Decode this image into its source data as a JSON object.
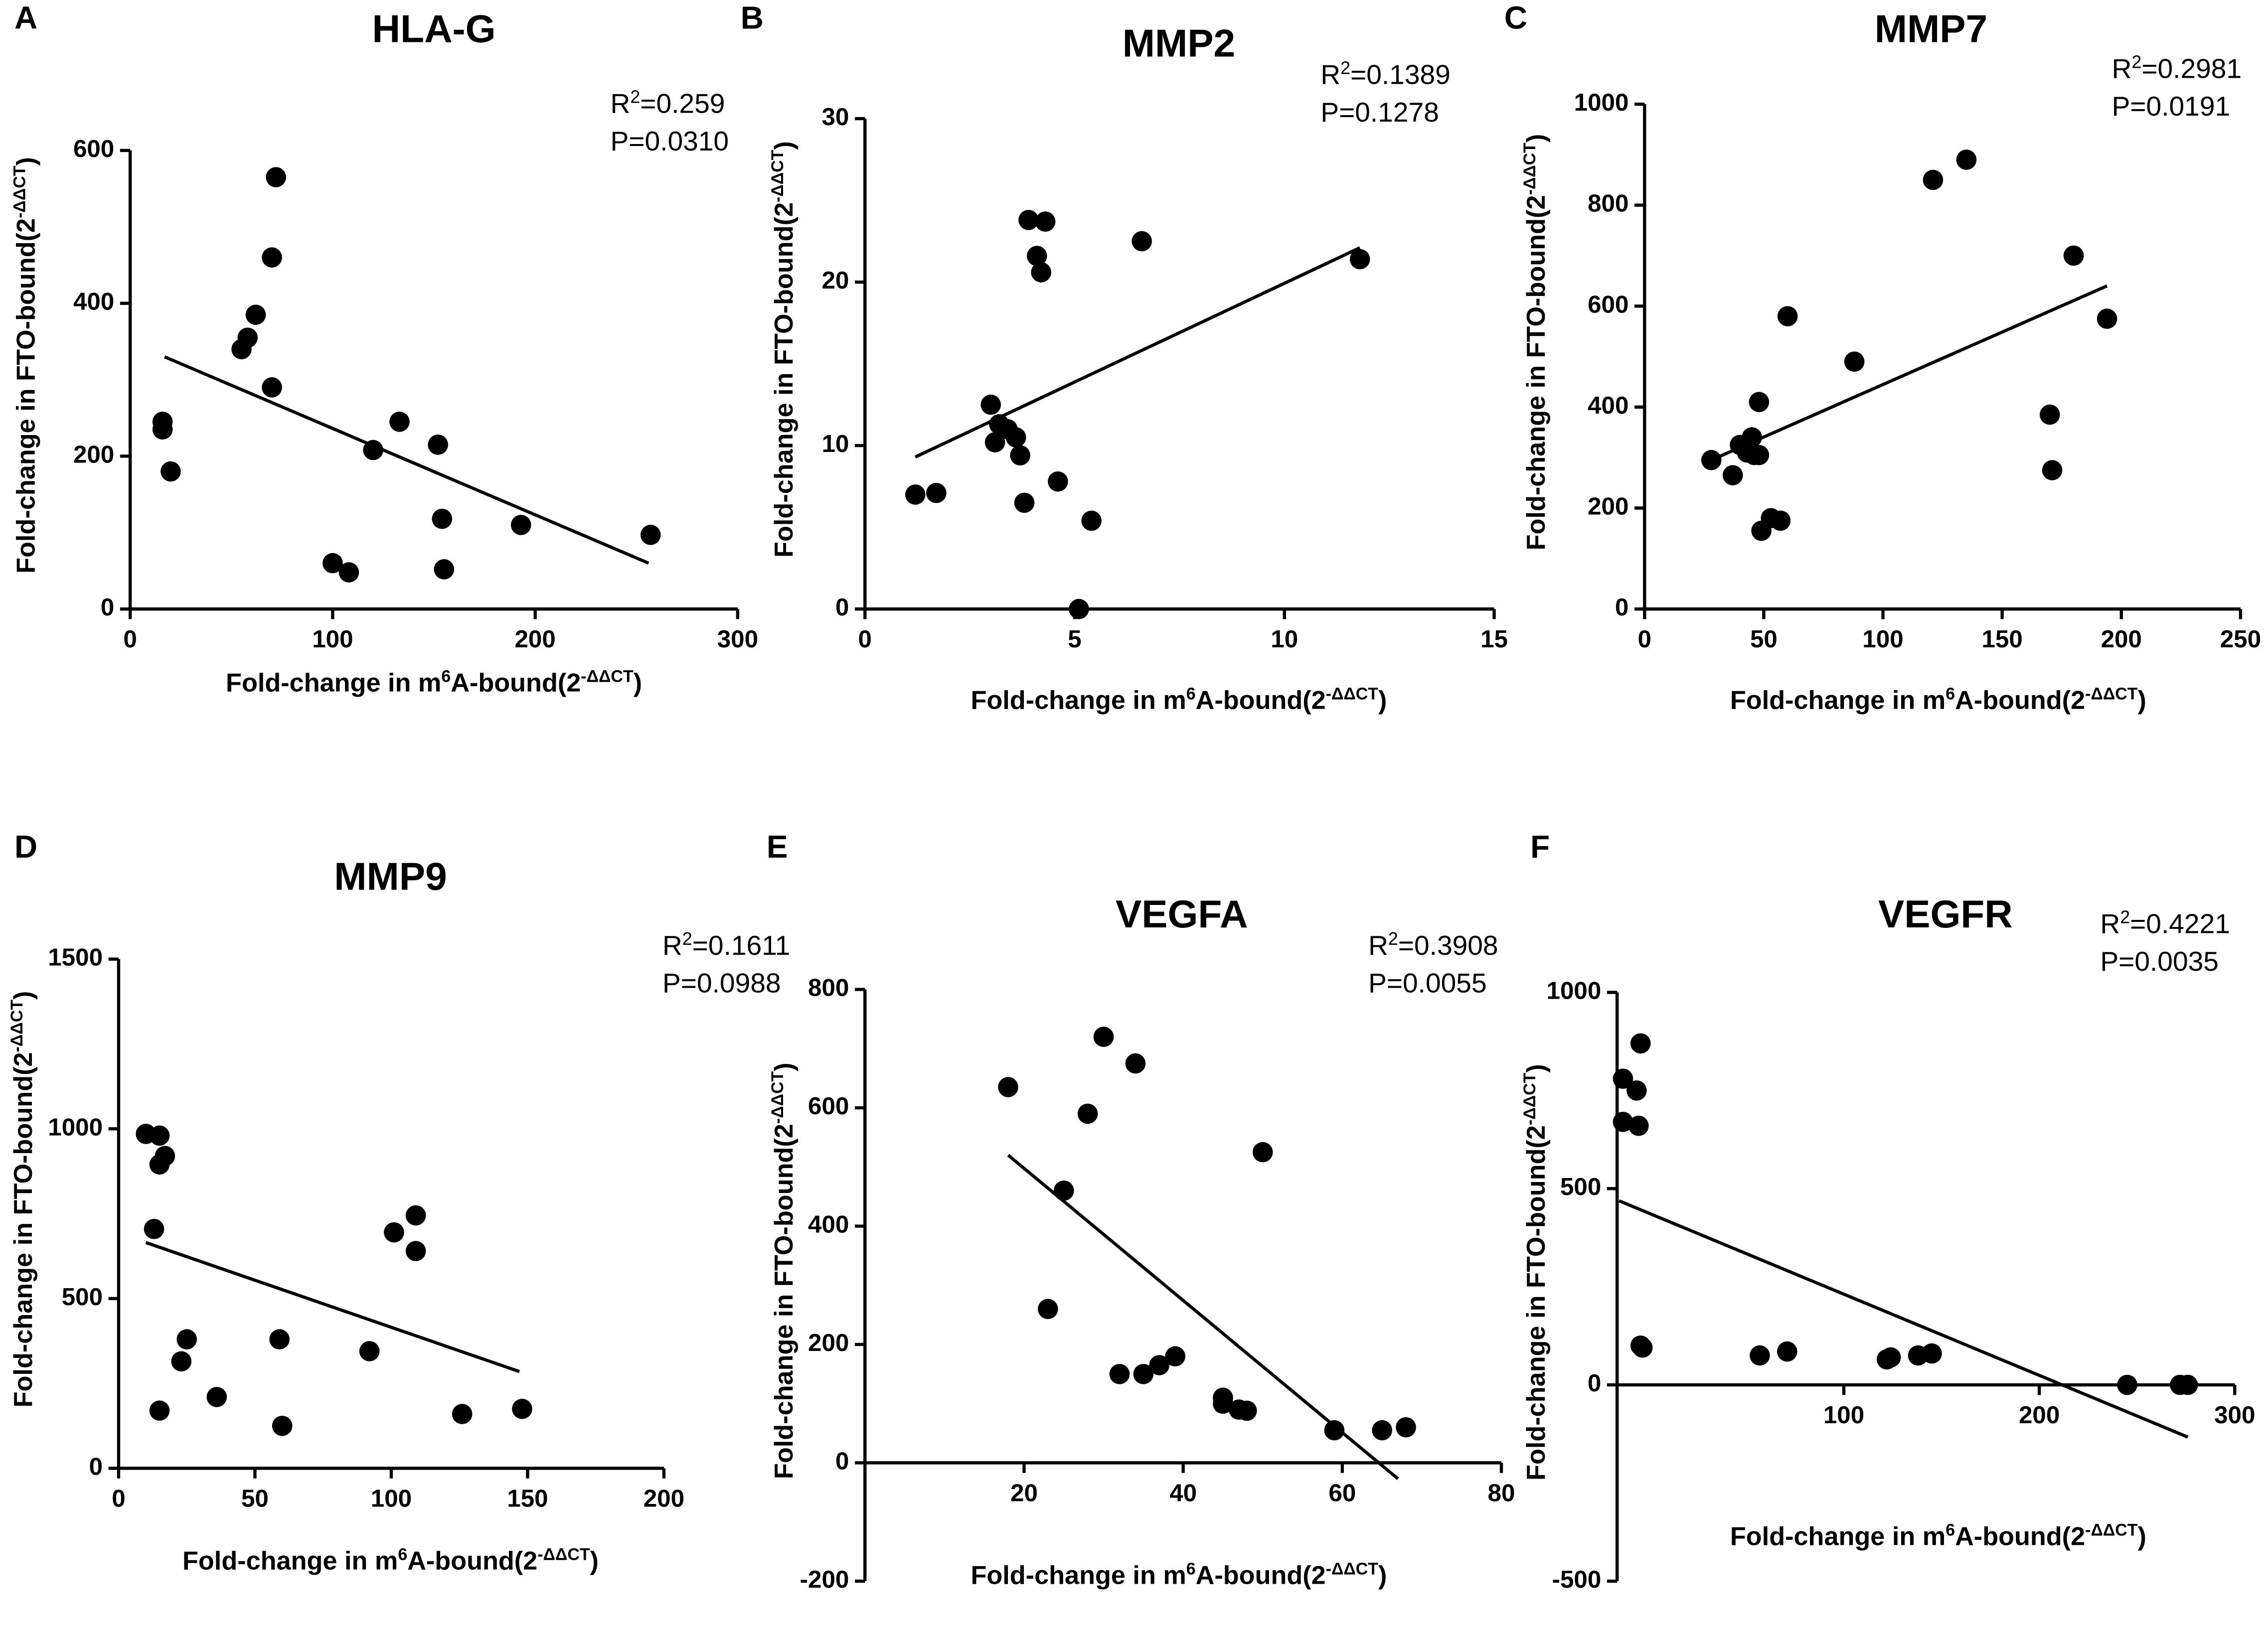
{
  "chart_data": [
    {
      "type": "scatter",
      "panel_label": "A",
      "title": "HLA-G",
      "xlabel": [
        "Fold-change in m",
        "6",
        "A-bound(2",
        "-ΔΔCT",
        ")"
      ],
      "ylabel": [
        "Fold-change in FTO-bound(2",
        "-ΔΔCT",
        ")"
      ],
      "r2": [
        "R",
        "2",
        "=0.259"
      ],
      "p": "P=0.0310",
      "color": "#000000",
      "x": [
        16,
        16,
        20,
        55,
        58,
        62,
        70,
        72,
        70,
        100,
        108,
        120,
        133,
        152,
        154,
        155,
        193,
        257
      ],
      "y": [
        245,
        235,
        180,
        340,
        355,
        385,
        460,
        565,
        290,
        60,
        48,
        208,
        245,
        215,
        118,
        52,
        110,
        97
      ],
      "fit": {
        "x": [
          17,
          256
        ],
        "y": [
          330,
          60
        ]
      },
      "xlim": [
        0,
        300
      ],
      "ylim": [
        0,
        600
      ],
      "xticks": [
        0,
        100,
        200,
        300
      ],
      "yticks": [
        0,
        200,
        400,
        600
      ]
    },
    {
      "type": "scatter",
      "panel_label": "B",
      "title": "MMP2",
      "xlabel": [
        "Fold-change in m",
        "6",
        "A-bound(2",
        "-ΔΔCT",
        ")"
      ],
      "ylabel": [
        "Fold-change in FTO-bound(2",
        "-ΔΔCT",
        ")"
      ],
      "r2": [
        "R",
        "2",
        "=0.1389"
      ],
      "p": "P=0.1278",
      "color": "#000000",
      "x": [
        1.2,
        1.7,
        3.0,
        3.1,
        3.2,
        3.4,
        3.6,
        3.7,
        3.8,
        3.9,
        4.1,
        4.2,
        4.3,
        4.6,
        5.1,
        5.4,
        6.6,
        11.8
      ],
      "y": [
        7,
        7.1,
        12.5,
        10.2,
        11.3,
        11,
        10.5,
        9.4,
        6.5,
        23.8,
        21.6,
        20.6,
        23.7,
        7.8,
        0,
        5.4,
        22.5,
        21.4
      ],
      "fit": {
        "x": [
          1.2,
          11.8
        ],
        "y": [
          9.3,
          22.1
        ]
      },
      "xlim": [
        0,
        15
      ],
      "ylim": [
        0,
        30
      ],
      "xticks": [
        0,
        5,
        10,
        15
      ],
      "yticks": [
        0,
        10,
        20,
        30
      ]
    },
    {
      "type": "scatter",
      "panel_label": "C",
      "title": "MMP7",
      "xlabel": [
        "Fold-change in m",
        "6",
        "A-bound(2",
        "-ΔΔCT",
        ")"
      ],
      "ylabel": [
        "Fold-change in FTO-bound(2",
        "-ΔΔCT",
        ")"
      ],
      "r2": [
        "R",
        "2",
        "=0.2981"
      ],
      "p": "P=0.0191",
      "color": "#000000",
      "x": [
        28,
        37,
        40,
        43,
        45,
        46,
        48,
        49,
        48,
        53,
        57,
        60,
        88,
        121,
        135,
        170,
        171,
        180,
        194
      ],
      "y": [
        295,
        265,
        325,
        310,
        340,
        305,
        305,
        155,
        410,
        180,
        175,
        580,
        490,
        850,
        890,
        385,
        275,
        700,
        575
      ],
      "fit": {
        "x": [
          28,
          194
        ],
        "y": [
          295,
          640
        ]
      },
      "xlim": [
        0,
        250
      ],
      "ylim": [
        0,
        1000
      ],
      "xticks": [
        0,
        50,
        100,
        150,
        200,
        250
      ],
      "yticks": [
        0,
        200,
        400,
        600,
        800,
        1000
      ]
    },
    {
      "type": "scatter",
      "panel_label": "D",
      "title": "MMP9",
      "xlabel": [
        "Fold-change in m",
        "6",
        "A-bound(2",
        "-ΔΔCT",
        ")"
      ],
      "ylabel": [
        "Fold-change in FTO-bound(2",
        "-ΔΔCT",
        ")"
      ],
      "r2": [
        "R",
        "2",
        "=0.1611"
      ],
      "p": "P=0.0988",
      "color": "#000000",
      "x": [
        10,
        15,
        15,
        17,
        13,
        15,
        23,
        25,
        36,
        59,
        60,
        92,
        101,
        109,
        109,
        126,
        148
      ],
      "y": [
        985,
        980,
        895,
        920,
        705,
        170,
        315,
        380,
        210,
        380,
        125,
        345,
        695,
        745,
        640,
        160,
        175
      ],
      "fit": {
        "x": [
          10,
          147
        ],
        "y": [
          665,
          285
        ]
      },
      "xlim": [
        0,
        200
      ],
      "ylim": [
        0,
        1500
      ],
      "xticks": [
        0,
        50,
        100,
        150,
        200
      ],
      "yticks": [
        0,
        500,
        1000,
        1500
      ]
    },
    {
      "type": "scatter",
      "panel_label": "E",
      "title": "VEGFA",
      "xlabel": [
        "Fold-change in m",
        "6",
        "A-bound(2",
        "-ΔΔCT",
        ")"
      ],
      "ylabel": [
        "Fold-change in FTO-bound(2",
        "-ΔΔCT",
        ")"
      ],
      "r2": [
        "R",
        "2",
        "=0.3908"
      ],
      "p": "P=0.0055",
      "color": "#000000",
      "x": [
        18,
        25,
        23,
        28,
        30,
        32,
        34,
        35,
        37,
        39,
        45,
        45,
        47,
        48,
        50,
        59,
        65,
        68
      ],
      "y": [
        635,
        460,
        260,
        590,
        720,
        150,
        675,
        150,
        165,
        180,
        110,
        100,
        90,
        88,
        525,
        55,
        55,
        60
      ],
      "fit": {
        "x": [
          18,
          67
        ],
        "y": [
          520,
          -27
        ]
      },
      "xlim": [
        0,
        80
      ],
      "ylim": [
        -200,
        800
      ],
      "xticks": [
        20,
        40,
        60,
        80
      ],
      "yticks": [
        -200,
        0,
        200,
        400,
        600,
        800
      ]
    },
    {
      "type": "scatter",
      "panel_label": "F",
      "title": "VEGFR",
      "xlabel": [
        "Fold-change in m",
        "6",
        "A-bound(2",
        "-ΔΔCT",
        ")"
      ],
      "ylabel": [
        "Fold-change in FTO-bound(2",
        "-ΔΔCT",
        ")"
      ],
      "r2": [
        "R",
        "2",
        "=0.4221"
      ],
      "p": "P=0.0035",
      "color": "#000000",
      "x": [
        -13,
        -13,
        -6,
        -5,
        -4,
        -4,
        -3,
        57,
        71,
        122,
        124,
        138,
        145,
        245,
        272,
        276
      ],
      "y": [
        780,
        670,
        750,
        660,
        870,
        100,
        95,
        75,
        85,
        65,
        70,
        75,
        80,
        0,
        0,
        0
      ],
      "fit": {
        "x": [
          -15,
          276
        ],
        "y": [
          469,
          -133
        ]
      },
      "xlim": [
        -16,
        300
      ],
      "ylim": [
        -500,
        1000
      ],
      "xticks": [
        100,
        200,
        300
      ],
      "yticks": [
        -500,
        0,
        500,
        1000
      ]
    }
  ]
}
